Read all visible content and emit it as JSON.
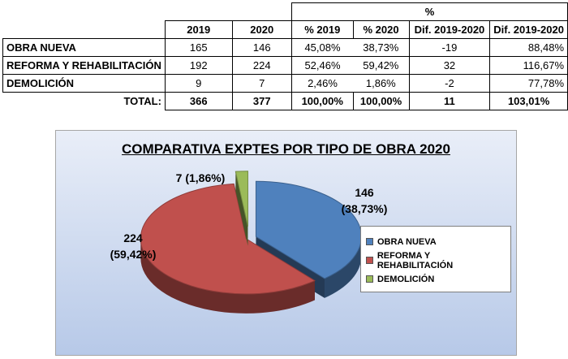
{
  "table": {
    "group_header": "%",
    "headers": [
      "",
      "2019",
      "2020",
      "% 2019",
      "% 2020",
      "Dif. 2019-2020",
      "Dif. 2019-2020"
    ],
    "rows": [
      [
        "OBRA NUEVA",
        "165",
        "146",
        "45,08%",
        "38,73%",
        "-19",
        "88,48%"
      ],
      [
        "REFORMA Y REHABILITACIÓN",
        "192",
        "224",
        "52,46%",
        "59,42%",
        "32",
        "116,67%"
      ],
      [
        "DEMOLICIÓN",
        "9",
        "7",
        "2,46%",
        "1,86%",
        "-2",
        "77,78%"
      ]
    ],
    "total": [
      "TOTAL:",
      "366",
      "377",
      "100,00%",
      "100,00%",
      "11",
      "103,01%"
    ]
  },
  "chart_data": {
    "type": "pie",
    "title": "COMPARATIVA EXPTES POR TIPO DE OBRA 2020",
    "categories": [
      "OBRA NUEVA",
      "REFORMA Y REHABILITACIÓN",
      "DEMOLICIÓN"
    ],
    "values": [
      146,
      224,
      7
    ],
    "percent_labels": [
      "(38,73%)",
      "(59,42%)",
      "(1,86%)"
    ],
    "colors": [
      "#4f81bd",
      "#c0504d",
      "#9bbb59"
    ],
    "legend_position": "right",
    "exploded": true,
    "three_d": true
  }
}
